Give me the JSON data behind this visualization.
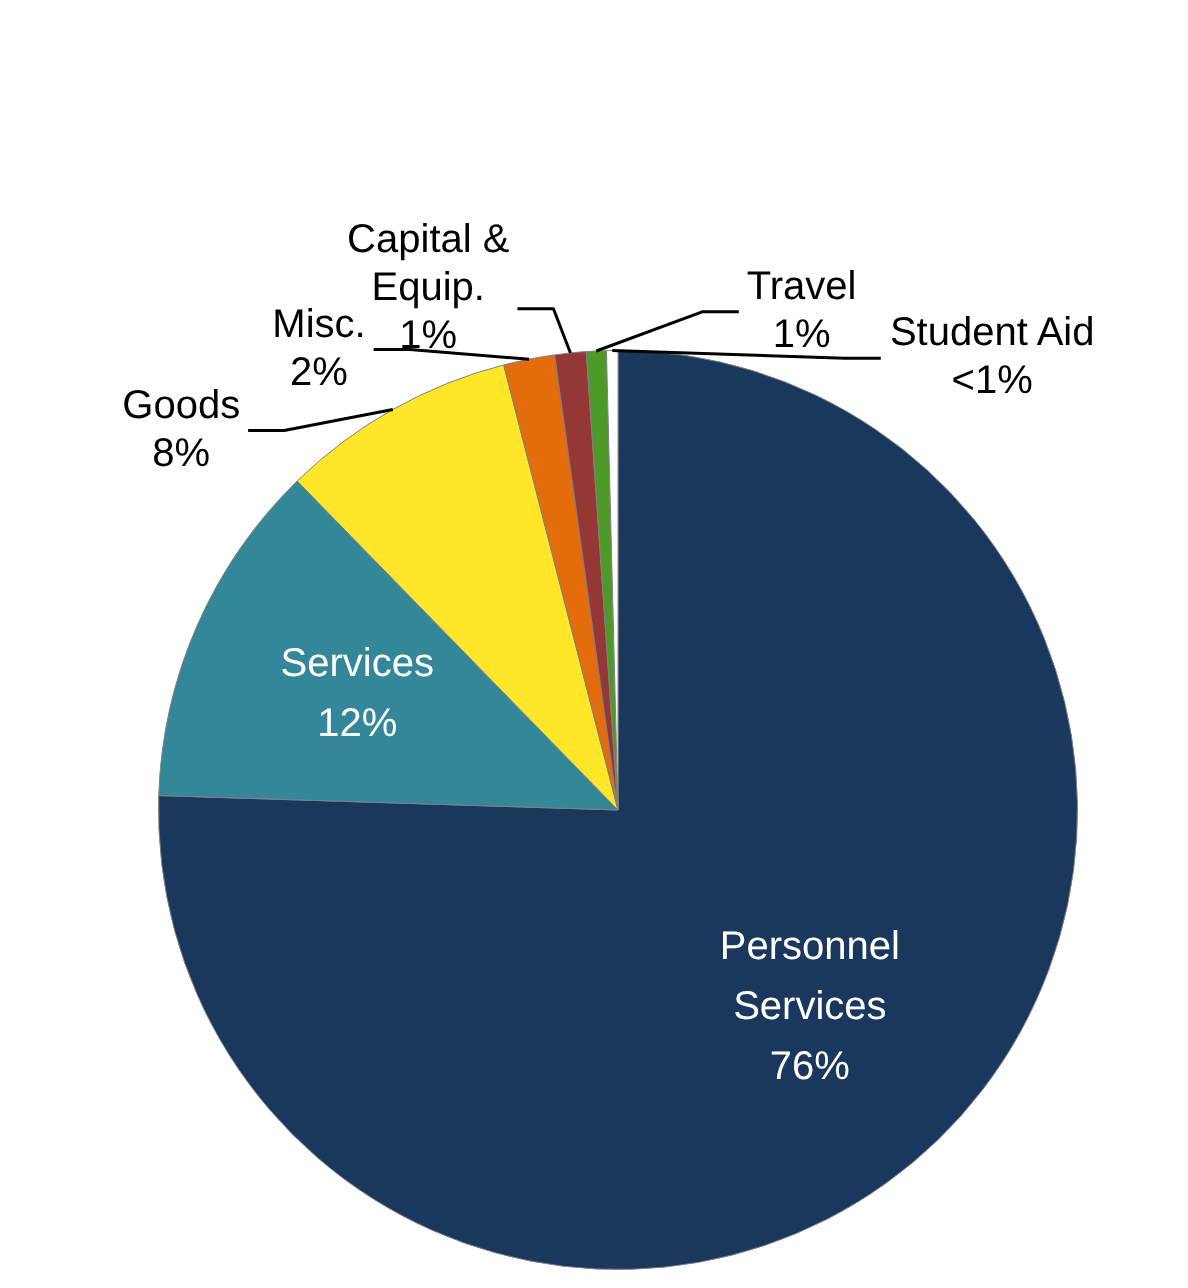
{
  "chart_data": {
    "type": "pie",
    "categories": [
      "Personnel\nServices",
      "Services",
      "Goods",
      "Misc.",
      "Capital &\nEquip.",
      "Travel",
      "Student Aid"
    ],
    "values": [
      75.5,
      12.2,
      8.3,
      1.8,
      1.1,
      0.7,
      0.4
    ],
    "value_labels": [
      "76%",
      "12%",
      "8%",
      "2%",
      "1%",
      "1%",
      "<1%"
    ],
    "colors": [
      "#1a375e",
      "#338799",
      "#ffe629",
      "#e46c0a",
      "#953735",
      "#4e9a28",
      "#ffffff"
    ],
    "legend": false
  }
}
